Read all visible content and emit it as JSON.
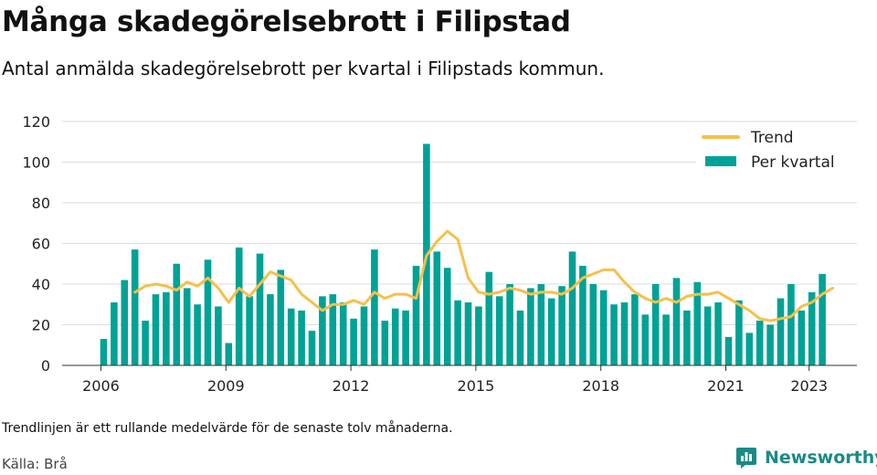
{
  "title": "Många skadegörelsebrott i Filipstad",
  "subtitle": "Antal anmälda skadegörelsebrott per kvartal i Filipstads kommun.",
  "footnote": "Trendlinjen är ett rullande medelvärde för de senaste tolv månaderna.",
  "source": "Källa: Brå",
  "brand": {
    "name": "Newsworthy",
    "icon": "bar-chart-logo-icon",
    "color": "#1b8a86"
  },
  "colors": {
    "bars": "#00a296",
    "trend": "#f5c04a",
    "grid": "#dddddd",
    "axis": "#333333",
    "text": "#222222"
  },
  "chart_data": {
    "type": "bar",
    "legend_position": "top-right",
    "grid": true,
    "ylim": [
      0,
      120
    ],
    "yticks": [
      0,
      20,
      40,
      60,
      80,
      100,
      120
    ],
    "xticks": [
      "2006",
      "2009",
      "2012",
      "2015",
      "2018",
      "2021",
      "2023"
    ],
    "legend": [
      "Trend",
      "Per kvartal"
    ],
    "series": [
      {
        "name": "Per kvartal",
        "type": "bar",
        "start": "2006 Q1",
        "values": [
          13,
          31,
          42,
          57,
          22,
          35,
          36,
          50,
          38,
          30,
          52,
          29,
          11,
          58,
          34,
          55,
          35,
          47,
          28,
          27,
          17,
          34,
          35,
          31,
          23,
          29,
          57,
          22,
          28,
          27,
          49,
          109,
          56,
          48,
          32,
          31,
          29,
          46,
          34,
          40,
          27,
          38,
          40,
          33,
          39,
          56,
          49,
          40,
          37,
          30,
          31,
          35,
          25,
          40,
          25,
          43,
          27,
          41,
          29,
          31,
          14,
          32,
          16,
          22,
          20,
          33,
          40,
          27,
          36,
          45
        ]
      },
      {
        "name": "Trend",
        "type": "line",
        "start": "2006 Q4",
        "values": [
          36,
          39,
          40,
          39,
          37,
          41,
          39,
          43,
          38,
          31,
          38,
          34,
          40,
          46,
          44,
          42,
          35,
          31,
          27,
          30,
          30,
          32,
          30,
          36,
          33,
          35,
          35,
          33,
          54,
          61,
          66,
          62,
          43,
          36,
          35,
          36,
          38,
          37,
          35,
          36,
          36,
          35,
          38,
          43,
          45,
          47,
          47,
          41,
          36,
          33,
          31,
          33,
          31,
          34,
          35,
          35,
          36,
          33,
          30,
          27,
          23,
          22,
          23,
          24,
          29,
          31,
          35,
          38
        ]
      }
    ]
  }
}
